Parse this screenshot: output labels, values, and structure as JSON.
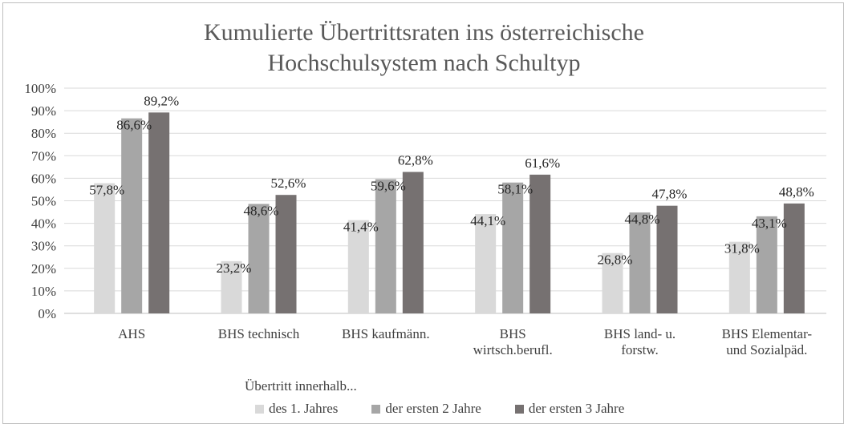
{
  "chart_data": {
    "type": "bar",
    "title_line1": "Kumulierte Übertrittsraten ins österreichische",
    "title_line2": "Hochschulsystem nach Schultyp",
    "categories": [
      [
        "AHS"
      ],
      [
        "BHS technisch"
      ],
      [
        "BHS kaufmänn."
      ],
      [
        "BHS",
        "wirtsch.berufl."
      ],
      [
        "BHS land- u.",
        "forstw."
      ],
      [
        "BHS Elementar-",
        "und Sozialpäd."
      ]
    ],
    "series": [
      {
        "name": "des 1. Jahres",
        "color": "#d9d9d9",
        "values": [
          57.8,
          23.2,
          41.4,
          44.1,
          26.8,
          31.8
        ],
        "labels": [
          "57,8%",
          "23,2%",
          "41,4%",
          "44,1%",
          "26,8%",
          "31,8%"
        ]
      },
      {
        "name": "der ersten 2 Jahre",
        "color": "#a6a6a6",
        "values": [
          86.6,
          48.6,
          59.6,
          58.1,
          44.8,
          43.1
        ],
        "labels": [
          "86,6%",
          "48,6%",
          "59,6%",
          "58,1%",
          "44,8%",
          "43,1%"
        ]
      },
      {
        "name": "der ersten 3 Jahre",
        "color": "#767171",
        "values": [
          89.2,
          52.6,
          62.8,
          61.6,
          47.8,
          48.8
        ],
        "labels": [
          "89,2%",
          "52,6%",
          "62,8%",
          "61,6%",
          "47,8%",
          "48,8%"
        ]
      }
    ],
    "yticks": [
      "0%",
      "10%",
      "20%",
      "30%",
      "40%",
      "50%",
      "60%",
      "70%",
      "80%",
      "90%",
      "100%"
    ],
    "ylim": [
      0,
      100
    ],
    "grid": true,
    "legend_title": "Übertritt innerhalb...",
    "legend_position": "bottom"
  }
}
